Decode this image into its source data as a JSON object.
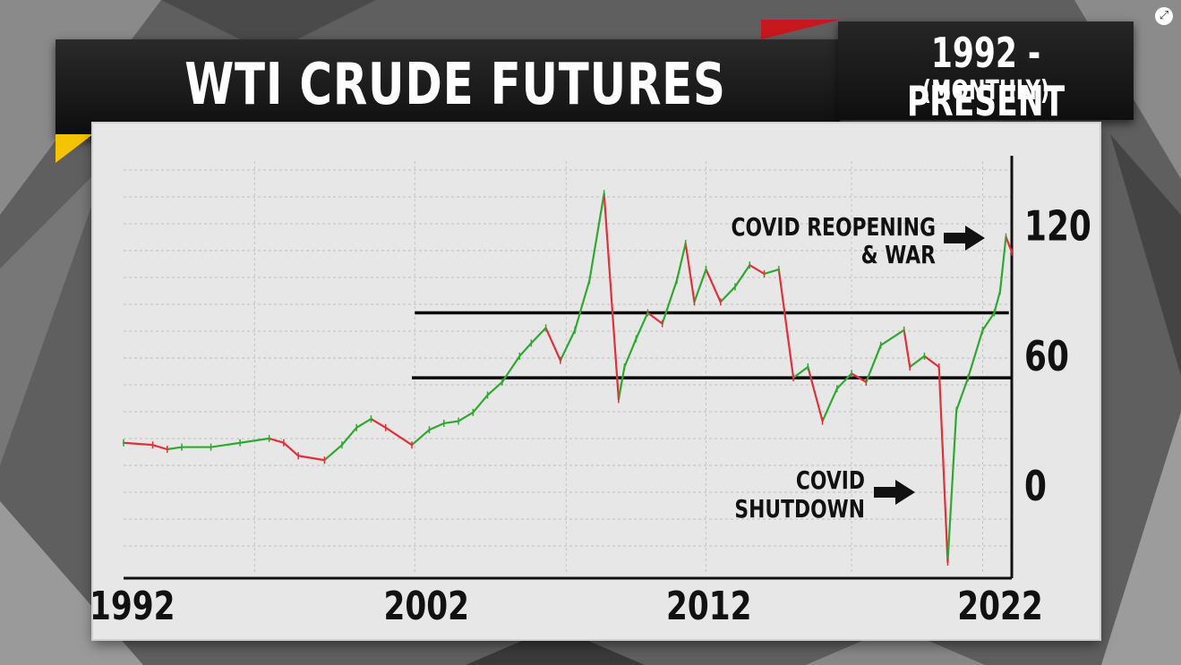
{
  "header": {
    "title": "WTI CRUDE FUTURES",
    "range_main": "1992 - PRESENT",
    "range_sub": "(MONTHLY)"
  },
  "icons": {
    "expand": "expand-arrows-icon"
  },
  "colors": {
    "up": "#2fa82f",
    "down": "#e0303a",
    "background": "#e7e7e7"
  },
  "chart_data": {
    "type": "line",
    "title": "WTI CRUDE FUTURES",
    "subtitle": "1992 - PRESENT (MONTHLY)",
    "x_tick_labels": [
      "1992",
      "2002",
      "2012",
      "2022"
    ],
    "y_tick_labels": [
      "0",
      "60",
      "120"
    ],
    "xlim": [
      1992,
      2022.5
    ],
    "ylim": [
      -40,
      150
    ],
    "grid": true,
    "reference_lines": [
      {
        "value": 80,
        "x_from": 2002.0,
        "x_to": 2022.4
      },
      {
        "value": 50,
        "x_from": 2001.9,
        "x_to": 2022.5
      }
    ],
    "series": [
      {
        "x": [
          1992.0,
          1993.0,
          1993.5,
          1994.0,
          1995.0,
          1996.0,
          1997.0,
          1997.5,
          1998.0,
          1998.9,
          1999.5,
          2000.0,
          2000.5,
          2001.0,
          2001.9,
          2002.5,
          2003.0,
          2003.5,
          2004.0,
          2004.5,
          2005.0,
          2005.6,
          2006.0,
          2006.5,
          2007.0,
          2007.5,
          2008.0,
          2008.5,
          2008.8,
          2009.0,
          2009.2,
          2009.6,
          2010.0,
          2010.5,
          2011.0,
          2011.3,
          2011.6,
          2012.0,
          2012.5,
          2013.0,
          2013.5,
          2014.0,
          2014.5,
          2014.8,
          2015.0,
          2015.5,
          2016.0,
          2016.5,
          2017.0,
          2017.5,
          2018.0,
          2018.8,
          2019.0,
          2019.5,
          2020.0,
          2020.3,
          2020.6,
          2021.0,
          2021.5,
          2021.9,
          2022.1,
          2022.3,
          2022.5
        ],
        "values": [
          20,
          19,
          17,
          18,
          18,
          20,
          22,
          20,
          14,
          12,
          19,
          27,
          31,
          27,
          19,
          26,
          29,
          30,
          34,
          42,
          48,
          60,
          66,
          73,
          58,
          72,
          95,
          135,
          78,
          40,
          55,
          68,
          80,
          75,
          95,
          112,
          85,
          100,
          85,
          92,
          102,
          98,
          100,
          70,
          50,
          55,
          30,
          45,
          52,
          48,
          65,
          72,
          55,
          60,
          55,
          -35,
          35,
          50,
          72,
          80,
          90,
          115,
          108
        ]
      }
    ],
    "annotations": [
      {
        "lines": [
          "COVID REOPENING",
          "& WAR"
        ],
        "arrow": "right"
      },
      {
        "lines": [
          "COVID",
          "SHUTDOWN"
        ],
        "arrow": "right"
      }
    ]
  }
}
